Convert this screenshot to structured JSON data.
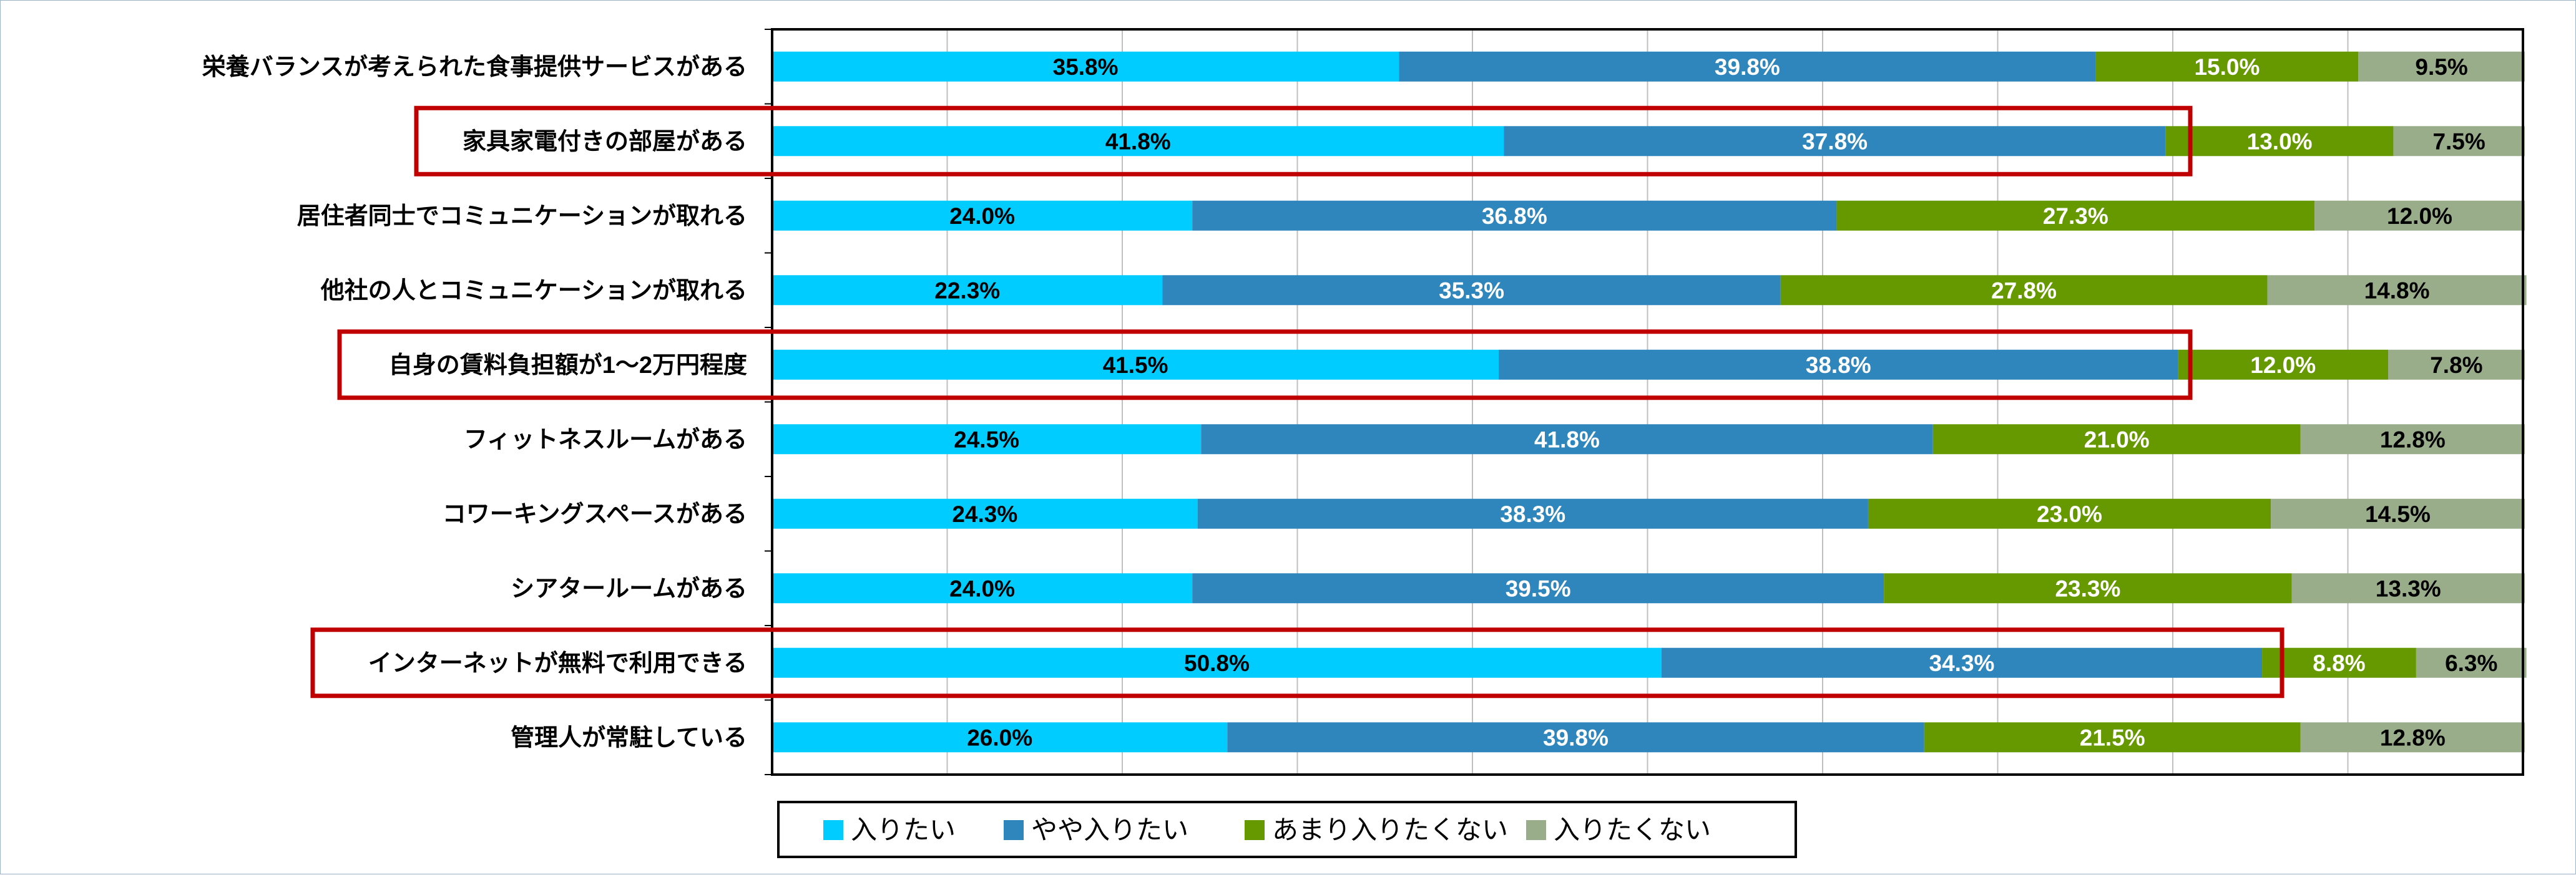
{
  "chart_data": {
    "type": "bar",
    "orientation": "horizontal",
    "stacked": "percent",
    "categories": [
      "栄養バランスが考えられた食事提供サービスがある",
      "家具家電付きの部屋がある",
      "居住者同士でコミュニケーションが取れる",
      "他社の人とコミュニケーションが取れる",
      "自身の賃料負担額が1～2万円程度",
      "フィットネスルームがある",
      "コワーキングスペースがある",
      "シアタールームがある",
      "インターネットが無料で利用できる",
      "管理人が常駐している"
    ],
    "highlighted_categories": [
      1,
      4,
      8
    ],
    "series": [
      {
        "name": "入りたい",
        "color": "#00ccff",
        "label_color": "#000000",
        "values": [
          35.8,
          41.8,
          24.0,
          22.3,
          41.5,
          24.5,
          24.3,
          24.0,
          50.8,
          26.0
        ]
      },
      {
        "name": "やや入りたい",
        "color": "#2e86bd",
        "label_color": "#ffffff",
        "values": [
          39.8,
          37.8,
          36.8,
          35.3,
          38.8,
          41.8,
          38.3,
          39.5,
          34.3,
          39.8
        ]
      },
      {
        "name": "あまり入りたくない",
        "color": "#669900",
        "label_color": "#ffffff",
        "values": [
          15.0,
          13.0,
          27.3,
          27.8,
          12.0,
          21.0,
          23.0,
          23.3,
          8.8,
          21.5
        ]
      },
      {
        "name": "入りたくない",
        "color": "#99ad8a",
        "label_color": "#000000",
        "values": [
          9.5,
          7.5,
          12.0,
          14.8,
          7.8,
          12.8,
          14.5,
          13.3,
          6.3,
          12.8
        ]
      }
    ],
    "value_labels": {
      "s0": [
        "35.8%",
        "41.8%",
        "24.0%",
        "22.3%",
        "41.5%",
        "24.5%",
        "24.3%",
        "24.0%",
        "50.8%",
        "26.0%"
      ],
      "s1": [
        "39.8%",
        "37.8%",
        "36.8%",
        "35.3%",
        "38.8%",
        "41.8%",
        "38.3%",
        "39.5%",
        "34.3%",
        "39.8%"
      ],
      "s2": [
        "15.0%",
        "13.0%",
        "27.3%",
        "27.8%",
        "12.0%",
        "21.0%",
        "23.0%",
        "23.3%",
        "8.8%",
        "21.5%"
      ],
      "s3": [
        "9.5%",
        "7.5%",
        "12.0%",
        "14.8%",
        "7.8%",
        "12.8%",
        "14.5%",
        "13.3%",
        "6.3%",
        "12.8%"
      ]
    },
    "xlim": [
      0,
      100
    ],
    "grid": true,
    "highlight_color": "#c00000",
    "legend_position": "bottom"
  }
}
